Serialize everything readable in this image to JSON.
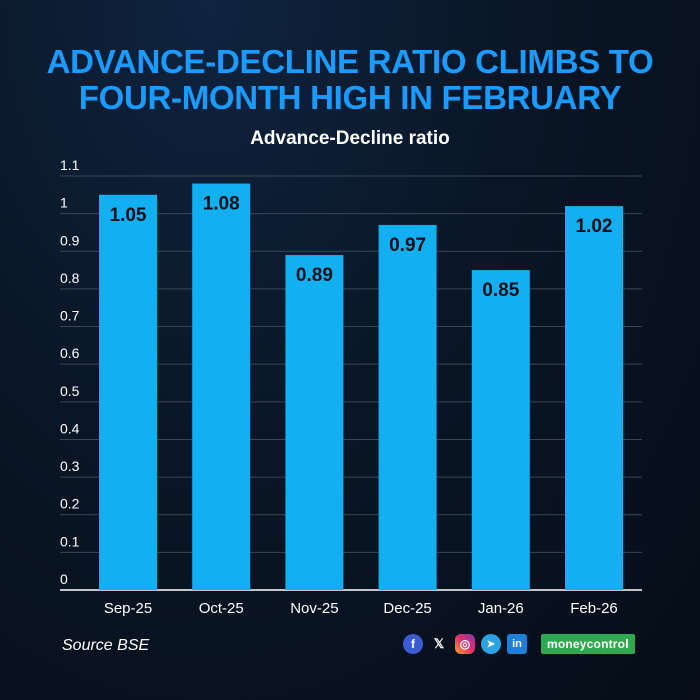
{
  "title_lines": [
    "ADVANCE-DECLINE RATIO CLIMBS TO",
    "FOUR-MONTH HIGH IN FEBRUARY"
  ],
  "source": "Source BSE",
  "brand": "moneycontrol",
  "social_icons": [
    "facebook-icon",
    "x-icon",
    "instagram-icon",
    "telegram-icon",
    "linkedin-icon"
  ],
  "colors": {
    "bar": "#12b0f0",
    "title": "#1a9bff",
    "background": "#0a1626",
    "label": "#0a0f18"
  },
  "chart_data": {
    "type": "bar",
    "title": "Advance-Decline ratio",
    "categories": [
      "Sep-25",
      "Oct-25",
      "Nov-25",
      "Dec-25",
      "Jan-26",
      "Feb-26"
    ],
    "values": [
      1.05,
      1.08,
      0.89,
      0.97,
      0.85,
      1.02
    ],
    "data_labels": [
      "1.05",
      "1.08",
      "0.89",
      "0.97",
      "0.85",
      "1.02"
    ],
    "yticks": [
      "0",
      "0.1",
      "0.2",
      "0.3",
      "0.4",
      "0.5",
      "0.6",
      "0.7",
      "0.8",
      "0.9",
      "1",
      "1.1"
    ],
    "ylim": [
      0,
      1.1
    ],
    "grid": true,
    "xlabel": "",
    "ylabel": ""
  }
}
